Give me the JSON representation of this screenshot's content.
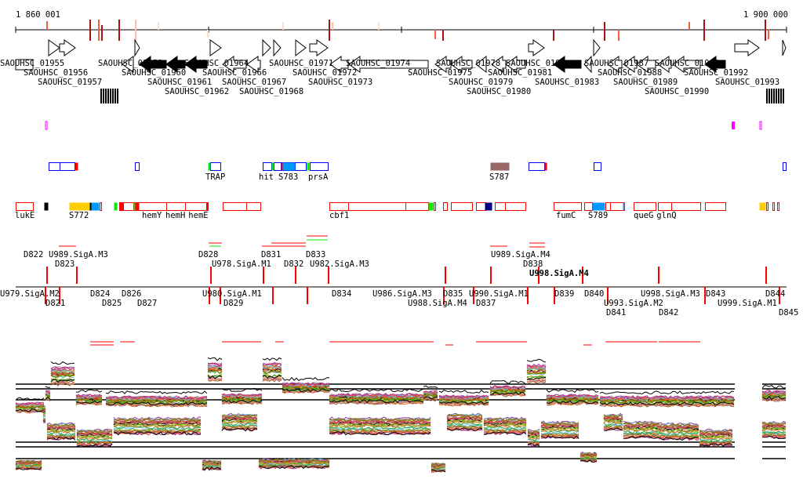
{
  "ruler": {
    "start_label": "1 860 001",
    "end_label": "1 900 000"
  },
  "gene_labels": [
    "SAOUHSC_01956",
    "SAOUHSC_01964",
    "SAOUHSC_01968",
    "SAOUHSC_01972",
    "SAOUHSC_019",
    "SAOUHSC_01993",
    "SAOUHSC_01955",
    "SAOUHSC_01957",
    "SAOUHSC_01958",
    "SAOUHSC_01961",
    "SAOUHSC_01971",
    "SAOUHSC_01975",
    "SAOUHSC_01978",
    "SAOUHSC_01981",
    "SAOUHSC_01987",
    "SAOUHSC_01990",
    "SAOUHSC_01962",
    "SAOUHSC_01966",
    "SAOUHSC_01973",
    "SAOUHSC_01979",
    "SAOUHSC_01988",
    "SAOUHSC_01991",
    "SAOUHSC_01960",
    "SAOUHSC_01967",
    "SAOUHSC_01974",
    "SAOUHSC_01980",
    "SAOUHSC_01983",
    "SAOUHSC_01989",
    "SAOUHSC_01992"
  ],
  "feature_labels_upper": [
    "TRAP",
    "hit",
    "S783",
    "prsA",
    "S787"
  ],
  "feature_labels_lower": [
    "lukE",
    "S772",
    "hemY",
    "hemH",
    "hemE",
    "cbf1",
    "fumC",
    "S789",
    "queG",
    "glnQ"
  ],
  "operon_labels_upper": [
    "D822",
    "U989.SigA.M3",
    "D823",
    "D828",
    "U978.SigA.M1",
    "D831",
    "D832",
    "D833",
    "U982.SigA.M3",
    "U989.SigA.M4",
    "D838",
    "U998.SigA.M4"
  ],
  "operon_labels_lower": [
    "D821",
    "D824",
    "D825",
    "D826",
    "D827",
    "D829",
    "D834",
    "D835",
    "D837",
    "D839",
    "D840",
    "D841",
    "D842",
    "D843",
    "D844",
    "D845"
  ],
  "operon_labels_bottom": [
    "U979.SigA.M2",
    "U980.SigA.M1",
    "U986.SigA.M3",
    "U988.SigA.M4",
    "U990.SigA.M1",
    "U993.SigA.M2",
    "U998.SigA.M3",
    "U999.SigA.M1"
  ],
  "colors": {
    "forward_feature": "#0000ff",
    "reverse_feature": "#ff0000",
    "sigma_site": "#00ee00",
    "cyan_feature": "#0099ff",
    "orange_feature": "#ffcc00",
    "brown_feature": "#996666",
    "navy_feature": "#000080",
    "magenta_mark": "#ff00ff",
    "ruler_mark_dark": "#aa1111",
    "ruler_mark_light": "#ffddcc"
  }
}
